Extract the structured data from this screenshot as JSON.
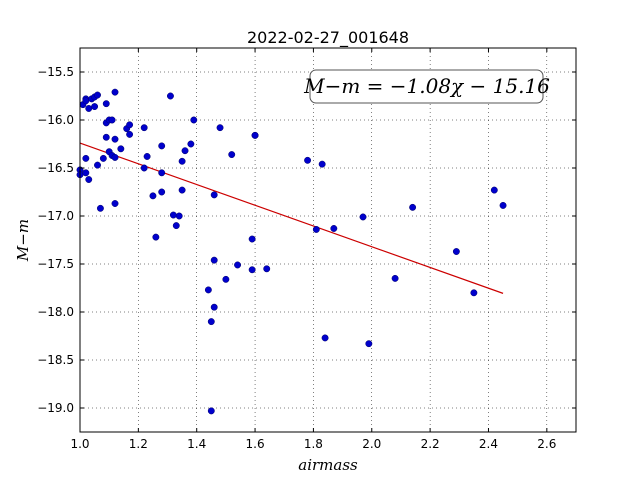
{
  "chart_data": {
    "type": "scatter",
    "title": "2022-02-27_001648",
    "xlabel": "airmass",
    "ylabel": "M−m",
    "xlim": [
      1.0,
      2.7
    ],
    "ylim": [
      -19.25,
      -15.25
    ],
    "xticks": [
      1.0,
      1.2,
      1.4,
      1.6,
      1.8,
      2.0,
      2.2,
      2.4,
      2.6
    ],
    "xtick_labels": [
      "1.0",
      "1.2",
      "1.4",
      "1.6",
      "1.8",
      "2.0",
      "2.2",
      "2.4",
      "2.6"
    ],
    "yticks": [
      -15.5,
      -16.0,
      -16.5,
      -17.0,
      -17.5,
      -18.0,
      -18.5,
      -19.0
    ],
    "ytick_labels": [
      "−15.5",
      "−16.0",
      "−16.5",
      "−17.0",
      "−17.5",
      "−18.0",
      "−18.5",
      "−19.0"
    ],
    "grid": true,
    "annotation": "M−m = −1.08χ − 15.16",
    "point_color": "#0000cc",
    "fit_color": "#cc0000",
    "fit": {
      "slope": -1.08,
      "intercept": -15.16,
      "x_range": [
        1.0,
        2.45
      ]
    },
    "points": [
      [
        1.0,
        -16.52
      ],
      [
        1.0,
        -16.57
      ],
      [
        1.01,
        -15.84
      ],
      [
        1.02,
        -15.78
      ],
      [
        1.02,
        -15.8
      ],
      [
        1.02,
        -16.4
      ],
      [
        1.02,
        -16.55
      ],
      [
        1.03,
        -15.88
      ],
      [
        1.03,
        -16.62
      ],
      [
        1.04,
        -15.78
      ],
      [
        1.05,
        -15.76
      ],
      [
        1.05,
        -15.86
      ],
      [
        1.06,
        -15.74
      ],
      [
        1.06,
        -16.47
      ],
      [
        1.07,
        -16.92
      ],
      [
        1.08,
        -16.4
      ],
      [
        1.09,
        -15.83
      ],
      [
        1.09,
        -16.03
      ],
      [
        1.09,
        -16.18
      ],
      [
        1.1,
        -16.0
      ],
      [
        1.1,
        -16.33
      ],
      [
        1.11,
        -16.37
      ],
      [
        1.11,
        -16.0
      ],
      [
        1.12,
        -16.2
      ],
      [
        1.12,
        -16.39
      ],
      [
        1.12,
        -15.71
      ],
      [
        1.12,
        -16.87
      ],
      [
        1.14,
        -16.3
      ],
      [
        1.16,
        -16.09
      ],
      [
        1.17,
        -16.05
      ],
      [
        1.17,
        -16.15
      ],
      [
        1.22,
        -16.5
      ],
      [
        1.22,
        -16.08
      ],
      [
        1.23,
        -16.38
      ],
      [
        1.25,
        -16.79
      ],
      [
        1.26,
        -17.22
      ],
      [
        1.28,
        -16.27
      ],
      [
        1.28,
        -16.75
      ],
      [
        1.28,
        -16.55
      ],
      [
        1.31,
        -15.75
      ],
      [
        1.32,
        -16.99
      ],
      [
        1.33,
        -17.1
      ],
      [
        1.34,
        -17.0
      ],
      [
        1.35,
        -16.43
      ],
      [
        1.35,
        -16.73
      ],
      [
        1.36,
        -16.32
      ],
      [
        1.38,
        -16.25
      ],
      [
        1.39,
        -16.0
      ],
      [
        1.44,
        -17.77
      ],
      [
        1.45,
        -18.1
      ],
      [
        1.45,
        -19.03
      ],
      [
        1.46,
        -17.46
      ],
      [
        1.46,
        -17.95
      ],
      [
        1.46,
        -16.78
      ],
      [
        1.48,
        -16.08
      ],
      [
        1.5,
        -17.66
      ],
      [
        1.52,
        -16.36
      ],
      [
        1.54,
        -17.51
      ],
      [
        1.59,
        -17.24
      ],
      [
        1.59,
        -17.56
      ],
      [
        1.6,
        -16.16
      ],
      [
        1.6,
        -16.16
      ],
      [
        1.64,
        -17.55
      ],
      [
        1.78,
        -16.42
      ],
      [
        1.81,
        -17.14
      ],
      [
        1.83,
        -16.46
      ],
      [
        1.84,
        -18.27
      ],
      [
        1.87,
        -17.13
      ],
      [
        1.97,
        -17.01
      ],
      [
        1.99,
        -18.33
      ],
      [
        2.08,
        -17.65
      ],
      [
        2.14,
        -16.91
      ],
      [
        2.29,
        -17.37
      ],
      [
        2.35,
        -17.8
      ],
      [
        2.42,
        -16.73
      ],
      [
        2.45,
        -16.89
      ]
    ]
  }
}
